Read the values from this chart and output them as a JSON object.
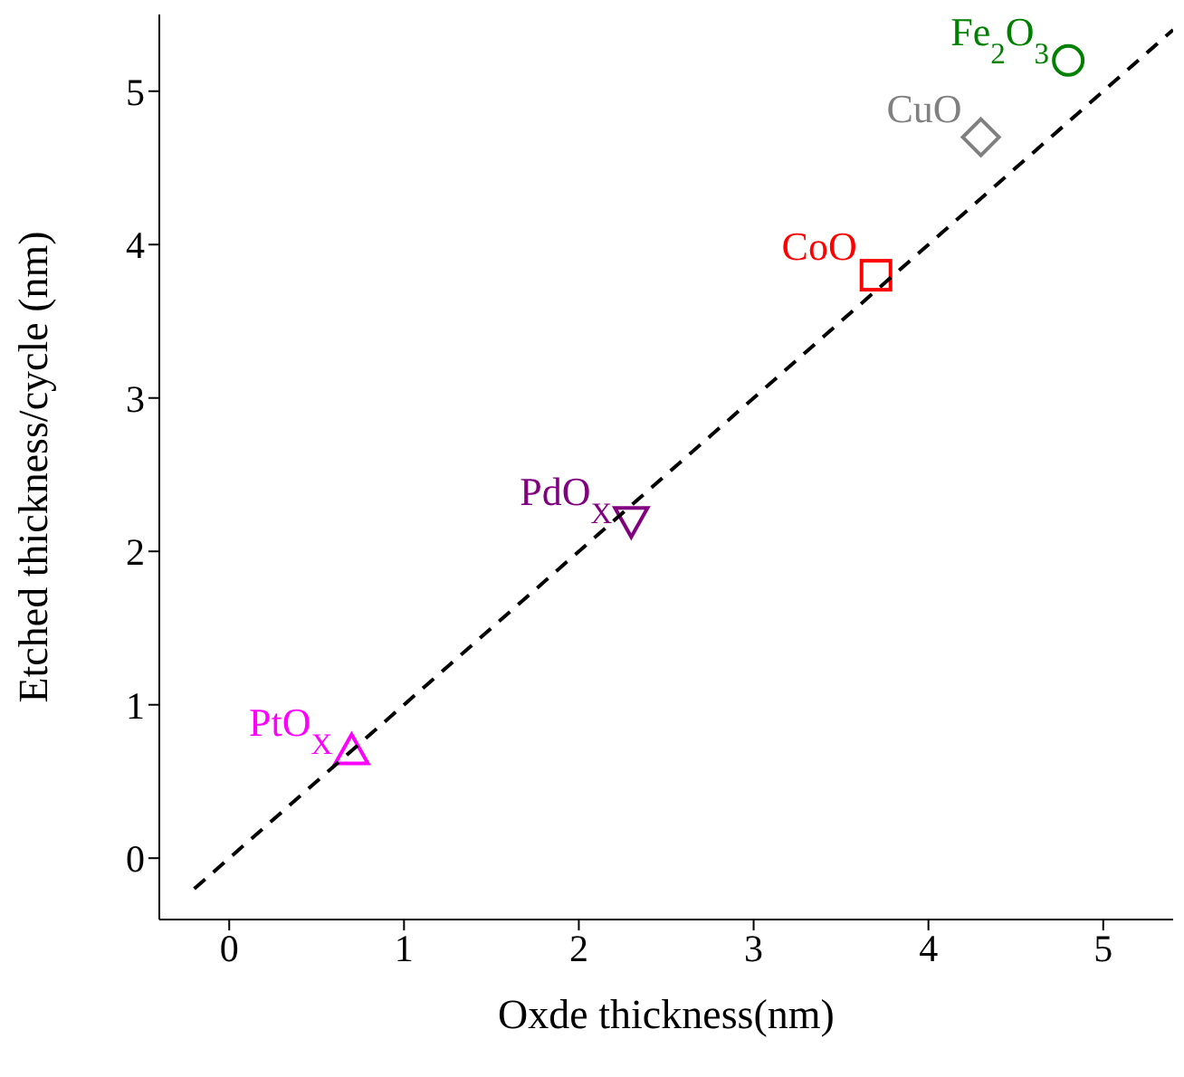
{
  "chart_data": {
    "type": "scatter",
    "xlabel": "Oxde thickness(nm)",
    "ylabel": "Etched thickness/cycle (nm)",
    "xlim": [
      -0.4,
      5.4
    ],
    "ylim": [
      -0.4,
      5.5
    ],
    "xticks": [
      0,
      1,
      2,
      3,
      4,
      5
    ],
    "yticks": [
      0,
      1,
      2,
      3,
      4,
      5
    ],
    "legend": false,
    "series": [
      {
        "name": "PtO$_{X}$",
        "color": "#ff00ff",
        "marker": "triangle",
        "x": [
          0.7
        ],
        "values": [
          0.7
        ]
      },
      {
        "name": "PdO$_{X}$",
        "color": "#800080",
        "marker": "triangle-down",
        "x": [
          2.3
        ],
        "values": [
          2.2
        ]
      },
      {
        "name": "CoO",
        "color": "#ff0000",
        "marker": "square",
        "x": [
          3.7
        ],
        "values": [
          3.8
        ]
      },
      {
        "name": "CuO",
        "color": "#808080",
        "marker": "diamond",
        "x": [
          4.3
        ],
        "values": [
          4.7
        ]
      },
      {
        "name": "Fe$_{2}$O$_{3}$",
        "color": "#008000",
        "marker": "circle",
        "x": [
          4.8
        ],
        "values": [
          5.2
        ]
      },
      {
        "type": "line",
        "color": "#000000",
        "line_style": "dashed",
        "marker": "none",
        "x": [
          -0.2,
          5.4
        ],
        "values": [
          -0.2,
          5.4
        ]
      }
    ]
  }
}
